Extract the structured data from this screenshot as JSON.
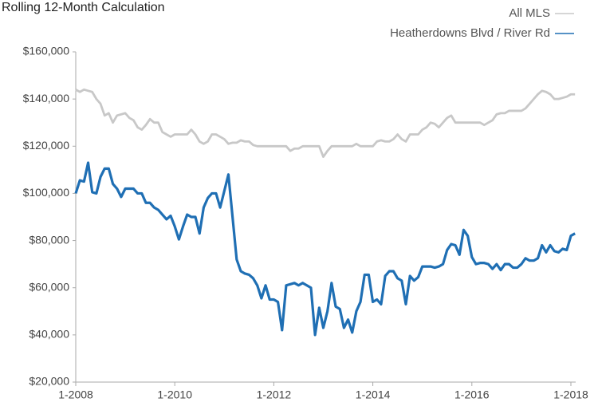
{
  "chart_data": {
    "type": "line",
    "title": "Rolling 12-Month Calculation",
    "categories": [
      "1-2008",
      null,
      null,
      null,
      null,
      null,
      null,
      null,
      null,
      null,
      null,
      null,
      null,
      null,
      null,
      null,
      null,
      null,
      null,
      null,
      null,
      null,
      null,
      null,
      "1-2010",
      null,
      null,
      null,
      null,
      null,
      null,
      null,
      null,
      null,
      null,
      null,
      null,
      null,
      null,
      null,
      null,
      null,
      null,
      null,
      null,
      null,
      null,
      null,
      "1-2012",
      null,
      null,
      null,
      null,
      null,
      null,
      null,
      null,
      null,
      null,
      null,
      null,
      null,
      null,
      null,
      null,
      null,
      null,
      null,
      null,
      null,
      null,
      null,
      "1-2014",
      null,
      null,
      null,
      null,
      null,
      null,
      null,
      null,
      null,
      null,
      null,
      null,
      null,
      null,
      null,
      null,
      null,
      null,
      null,
      null,
      null,
      null,
      null,
      "1-2016",
      null,
      null,
      null,
      null,
      null,
      null,
      null,
      null,
      null,
      null,
      null,
      null,
      null,
      null,
      null,
      null,
      null,
      null,
      null,
      null,
      null,
      null,
      null,
      "1-2018",
      null
    ],
    "series": [
      {
        "name": "All MLS",
        "color": "#c8c8c8",
        "values": [
          144000,
          143000,
          144000,
          143500,
          143000,
          140000,
          138000,
          133000,
          134000,
          130000,
          133000,
          133500,
          134000,
          132000,
          131000,
          128000,
          127000,
          129000,
          131500,
          130000,
          130000,
          126000,
          125000,
          124000,
          125000,
          125000,
          125000,
          125000,
          127000,
          125000,
          122000,
          121000,
          122000,
          125000,
          125000,
          124000,
          123000,
          121000,
          121500,
          121500,
          122500,
          122000,
          122000,
          120500,
          120000,
          120000,
          120000,
          120000,
          120000,
          120000,
          120000,
          120000,
          118000,
          119000,
          119000,
          120000,
          120000,
          120000,
          120000,
          120000,
          115500,
          118000,
          120000,
          120000,
          120000,
          120000,
          120000,
          120000,
          121000,
          120000,
          120000,
          120000,
          120000,
          122000,
          122500,
          122000,
          122000,
          123000,
          125000,
          123000,
          122000,
          125000,
          125000,
          125000,
          127000,
          128000,
          130000,
          129500,
          128000,
          130000,
          132000,
          133000,
          130000,
          130000,
          130000,
          130000,
          130000,
          130000,
          130000,
          129000,
          130000,
          131000,
          133500,
          134000,
          134000,
          135000,
          135000,
          135000,
          135000,
          136000,
          138000,
          140000,
          142000,
          143500,
          143000,
          142000,
          140000,
          140000,
          140500,
          141000,
          142000,
          142000
        ]
      },
      {
        "name": "Heatherdowns Blvd / River Rd",
        "color": "#1f6fb4",
        "values": [
          100000,
          105500,
          105000,
          113000,
          100500,
          100000,
          107000,
          110500,
          110500,
          104000,
          102000,
          98500,
          102000,
          102000,
          102000,
          100000,
          100000,
          96000,
          96000,
          94000,
          93000,
          91000,
          89000,
          90500,
          86000,
          80500,
          86000,
          91000,
          90000,
          90000,
          83000,
          94000,
          98000,
          100000,
          100000,
          94000,
          101000,
          108000,
          90000,
          72000,
          67000,
          66000,
          65500,
          64000,
          61000,
          55500,
          61000,
          55000,
          55000,
          54000,
          42000,
          61000,
          61500,
          62000,
          61000,
          62000,
          61000,
          60000,
          40000,
          51500,
          43000,
          50000,
          62000,
          52000,
          51000,
          43000,
          46500,
          41000,
          50000,
          54000,
          65500,
          65500,
          54000,
          55000,
          53000,
          65000,
          67000,
          67000,
          64000,
          63000,
          53000,
          65000,
          63000,
          64500,
          69000,
          69000,
          69000,
          68500,
          69000,
          70000,
          76000,
          78500,
          78000,
          74000,
          84500,
          82000,
          73000,
          70000,
          70500,
          70500,
          70000,
          68000,
          70000,
          67500,
          70000,
          70000,
          68500,
          68500,
          70000,
          72500,
          71500,
          71500,
          72500,
          78000,
          75000,
          78000,
          75500,
          75000,
          76500,
          76000,
          82000,
          83000
        ]
      }
    ],
    "ylim": [
      20000,
      160000
    ],
    "yticks": [
      {
        "value": 20000,
        "label": "$20,000"
      },
      {
        "value": 40000,
        "label": "$40,000"
      },
      {
        "value": 60000,
        "label": "$60,000"
      },
      {
        "value": 80000,
        "label": "$80,000"
      },
      {
        "value": 100000,
        "label": "$100,000"
      },
      {
        "value": 120000,
        "label": "$120,000"
      },
      {
        "value": 140000,
        "label": "$140,000"
      },
      {
        "value": 160000,
        "label": "$160,000"
      }
    ],
    "grid": false
  }
}
